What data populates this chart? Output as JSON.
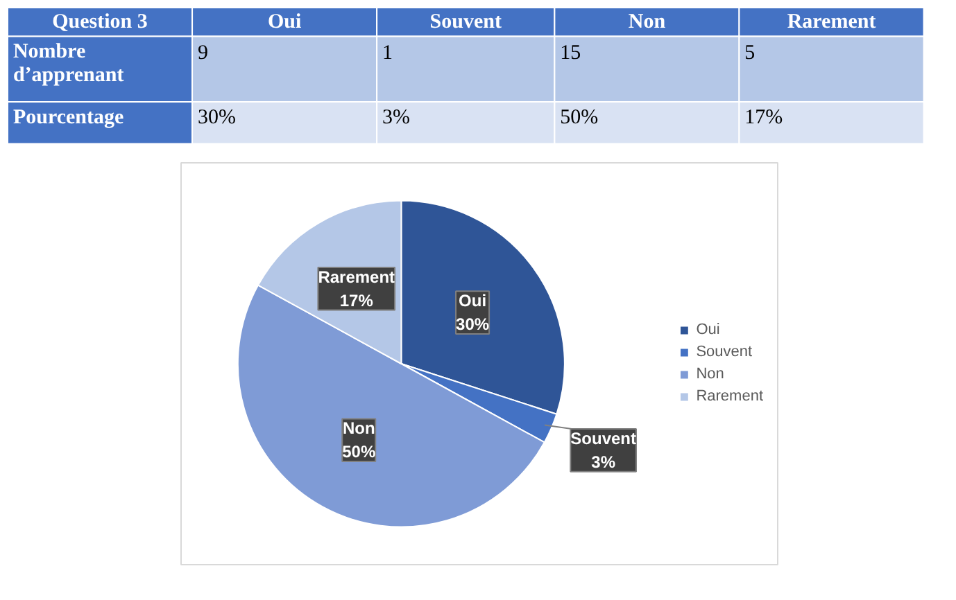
{
  "chart_data": [
    {
      "type": "other",
      "annotations": [
        "Question 3",
        "Oui",
        "Souvent",
        "Non",
        "Rarement",
        "Nombre d’apprenant",
        "9",
        "1",
        "15",
        "5",
        "Pourcentage",
        "30%",
        "3%",
        "50%",
        "17%"
      ]
    },
    {
      "type": "pie",
      "categories": [
        "Oui",
        "Souvent",
        "Non",
        "Rarement"
      ],
      "values": [
        30,
        3,
        50,
        17
      ],
      "value_labels": [
        "30%",
        "3%",
        "50%",
        "17%"
      ],
      "colors": [
        "#2f5597",
        "#4472c4",
        "#7f9bd6",
        "#b4c7e7"
      ],
      "legend": "right"
    }
  ]
}
